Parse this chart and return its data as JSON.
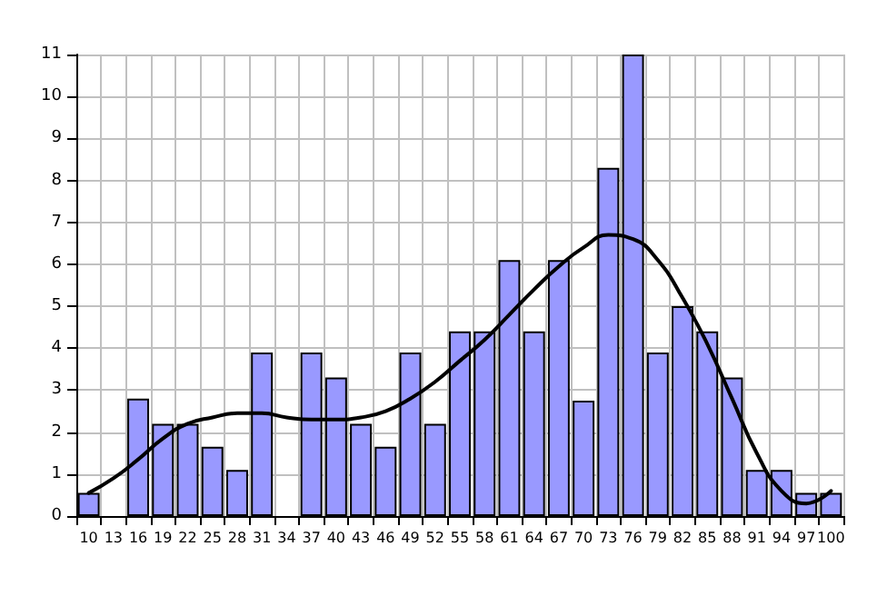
{
  "chart_data": {
    "type": "bar",
    "categories": [
      "10",
      "13",
      "16",
      "19",
      "22",
      "25",
      "28",
      "31",
      "34",
      "37",
      "40",
      "43",
      "46",
      "49",
      "52",
      "55",
      "58",
      "61",
      "64",
      "67",
      "70",
      "73",
      "76",
      "79",
      "82",
      "85",
      "88",
      "91",
      "94",
      "97",
      "100"
    ],
    "series": [
      {
        "color": "#9999ff",
        "values": [
          0.55,
          0,
          2.8,
          2.2,
          2.2,
          1.65,
          1.1,
          3.9,
          0,
          3.9,
          3.3,
          2.2,
          1.65,
          3.9,
          2.2,
          4.4,
          4.4,
          6.1,
          4.4,
          6.1,
          2.75,
          8.3,
          11,
          3.9,
          5.0,
          4.4,
          3.3,
          1.1,
          1.1,
          0.55,
          0.55
        ]
      },
      {
        "type": "line",
        "color": "#000000",
        "x": [
          "10",
          "13",
          "16",
          "19",
          "22",
          "25",
          "28",
          "31",
          "34",
          "37",
          "40",
          "43",
          "46",
          "49",
          "52",
          "55",
          "58",
          "61",
          "64",
          "67",
          "70",
          "73",
          "76",
          "79",
          "82",
          "85",
          "88",
          "91",
          "94",
          "97",
          "100"
        ],
        "values": [
          0.55,
          0.9,
          1.35,
          1.85,
          2.2,
          2.35,
          2.45,
          2.45,
          2.35,
          2.3,
          2.3,
          2.35,
          2.5,
          2.8,
          3.2,
          3.7,
          4.2,
          4.8,
          5.4,
          5.95,
          6.4,
          6.7,
          6.6,
          6.1,
          5.2,
          4.1,
          2.8,
          1.5,
          0.6,
          0.3,
          0.6
        ]
      }
    ],
    "ylim": [
      0,
      11
    ],
    "yticks": [
      0,
      1,
      2,
      3,
      4,
      5,
      6,
      7,
      8,
      9,
      10,
      11
    ],
    "grid": true,
    "marker": "none",
    "line_style": "solid"
  }
}
